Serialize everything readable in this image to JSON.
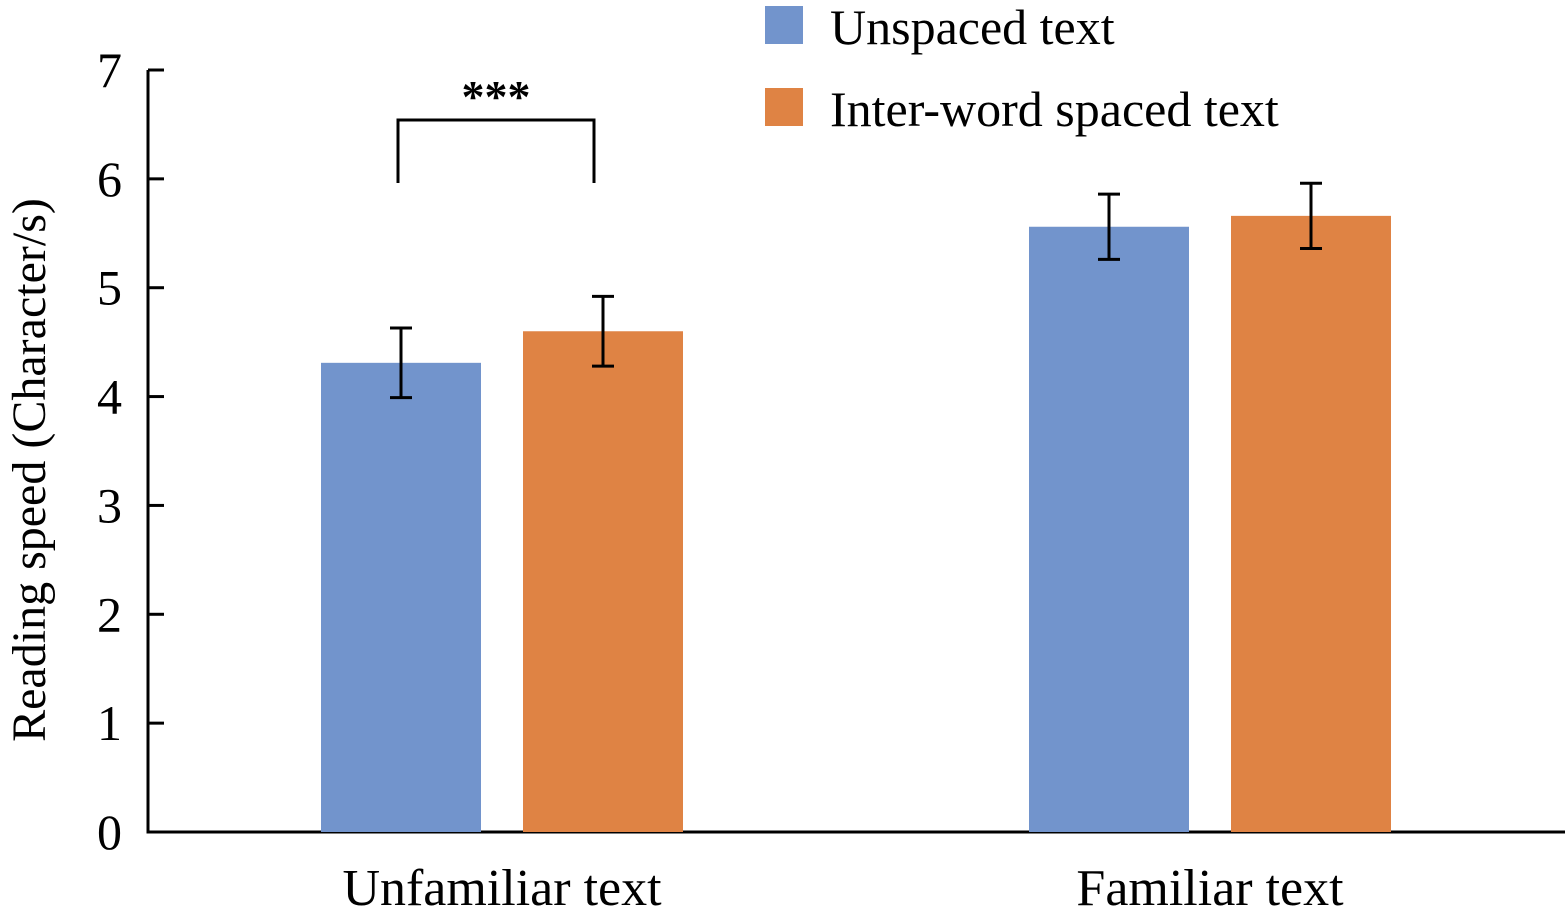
{
  "chart_data": {
    "type": "bar",
    "categories": [
      "Unfamiliar text",
      "Familiar text"
    ],
    "series": [
      {
        "name": "Unspaced text",
        "color": "#7294CC",
        "values": [
          4.31,
          5.56
        ],
        "error": [
          0.32,
          0.3
        ]
      },
      {
        "name": "Inter-word spaced text",
        "color": "#DF8344",
        "values": [
          4.6,
          5.66
        ],
        "error": [
          0.32,
          0.3
        ]
      }
    ],
    "xlabel": "",
    "ylabel": "Reading speed (Character/s)",
    "ylim": [
      0,
      7
    ],
    "yticks": [
      "0",
      "1",
      "2",
      "3",
      "4",
      "5",
      "6",
      "7"
    ],
    "grid": false,
    "legend_position": "top-right",
    "annotations": [
      {
        "text": "***",
        "category": "Unfamiliar text",
        "between_series": [
          0,
          1
        ]
      }
    ]
  }
}
